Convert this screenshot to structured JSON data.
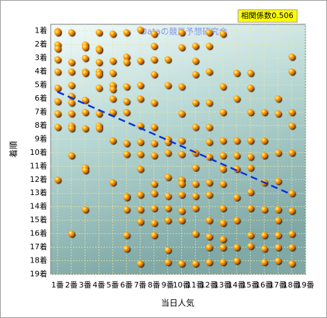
{
  "chart_data": {
    "type": "scatter",
    "title": "Dataの競馬予想研究会",
    "annotation": "相関係数0.506",
    "x_label": "当日人気",
    "y_label": "着順",
    "x": [
      1,
      1,
      1,
      1,
      1,
      1,
      1,
      1,
      1,
      1,
      1,
      2,
      2,
      2,
      2,
      2,
      2,
      2,
      2,
      2,
      2,
      2,
      3,
      3,
      3,
      3,
      3,
      3,
      3,
      3,
      3,
      3,
      3,
      4,
      4,
      4,
      4,
      4,
      4,
      4,
      4,
      4,
      4,
      5,
      5,
      5,
      5,
      5,
      5,
      5,
      5,
      5,
      6,
      6,
      6,
      6,
      6,
      6,
      6,
      6,
      6,
      6,
      6,
      6,
      6,
      7,
      7,
      7,
      7,
      7,
      7,
      7,
      7,
      7,
      7,
      7,
      7,
      8,
      8,
      8,
      8,
      8,
      8,
      8,
      8,
      8,
      8,
      8,
      8,
      8,
      9,
      9,
      9,
      9,
      9,
      9,
      9,
      9,
      9,
      9,
      9,
      10,
      10,
      10,
      10,
      10,
      10,
      10,
      10,
      10,
      10,
      10,
      10,
      11,
      11,
      11,
      11,
      11,
      11,
      11,
      11,
      11,
      11,
      11,
      11,
      12,
      12,
      12,
      12,
      12,
      12,
      12,
      12,
      12,
      12,
      12,
      12,
      12,
      13,
      13,
      13,
      13,
      13,
      13,
      13,
      13,
      13,
      13,
      13,
      13,
      14,
      14,
      14,
      14,
      14,
      14,
      14,
      14,
      14,
      15,
      15,
      15,
      15,
      15,
      15,
      15,
      15,
      15,
      15,
      16,
      16,
      16,
      16,
      16,
      16,
      16,
      16,
      17,
      17,
      17,
      17,
      17,
      17,
      17,
      17,
      17,
      18,
      18,
      18,
      18,
      18,
      18,
      18,
      18,
      18,
      18
    ],
    "values": [
      1,
      1.1,
      2,
      2.3,
      3.1,
      4,
      5.2,
      6.2,
      7.1,
      8.1,
      12,
      1.1,
      3.3,
      4,
      5,
      5.8,
      6.3,
      7.1,
      8,
      8.2,
      10.2,
      16,
      2,
      2.2,
      3,
      4,
      4.1,
      6.1,
      7,
      8.2,
      11.1,
      11.3,
      14.2,
      1.1,
      2.3,
      2.4,
      3.3,
      4,
      4.2,
      5.2,
      7.1,
      8,
      8.2,
      1.2,
      3.2,
      4.1,
      5,
      5.3,
      6,
      7,
      9.1,
      12.2,
      1.1,
      2.9,
      3.3,
      5.1,
      6.2,
      7,
      9.3,
      10.1,
      13.2,
      13.3,
      14.2,
      16.1,
      17.1,
      0.9,
      3.2,
      5,
      6,
      8,
      9.2,
      10.1,
      11.2,
      13.1,
      14.2,
      15.1,
      18.2,
      1.2,
      2.1,
      3.1,
      4.2,
      6.3,
      8.1,
      9.3,
      10.2,
      12.3,
      13,
      14.1,
      15.2,
      16.1,
      3.1,
      5,
      9,
      9.2,
      10,
      11.8,
      13.2,
      14.1,
      15,
      17.2,
      18.1,
      1.1,
      2.2,
      5.1,
      7.1,
      9.1,
      10.1,
      12,
      12.3,
      13.1,
      14.3,
      15,
      18.2,
      2.1,
      3.2,
      4.2,
      6.3,
      8.1,
      10,
      11.1,
      12.3,
      13.2,
      14.1,
      16,
      18.2,
      1.1,
      2.1,
      4,
      6.3,
      8.1,
      9.2,
      10.3,
      12.2,
      13.1,
      15,
      16.2,
      17,
      18.1,
      1.2,
      5.1,
      7,
      9.1,
      10.2,
      11.2,
      12.3,
      14.1,
      15.2,
      16.4,
      17,
      18.1,
      4.1,
      6,
      9.1,
      10.2,
      11.2,
      13.3,
      15,
      17,
      18,
      4.1,
      5.2,
      7,
      9.1,
      10.3,
      11.1,
      12.9,
      14.1,
      16.1,
      16.9,
      7,
      9.1,
      10.2,
      12.2,
      14.2,
      16.1,
      17.1,
      18.1,
      6,
      7.1,
      10,
      12.1,
      14.2,
      15,
      16.1,
      17,
      18,
      2.9,
      4,
      7,
      8,
      10,
      13,
      14.3,
      16,
      17,
      18.2
    ],
    "color": "#ff9900",
    "trend": {
      "x": [
        1,
        18
      ],
      "values": [
        5.5,
        13.1
      ],
      "color": "#0a2ee0"
    },
    "xlim": [
      0.5,
      19
    ],
    "ylim": [
      0.5,
      19
    ],
    "xticks": [
      {
        "value": 1,
        "label": "1番"
      },
      {
        "value": 2,
        "label": "2番"
      },
      {
        "value": 3,
        "label": "3番"
      },
      {
        "value": 4,
        "label": "4番"
      },
      {
        "value": 5,
        "label": "5番"
      },
      {
        "value": 6,
        "label": "6番"
      },
      {
        "value": 7,
        "label": "7番"
      },
      {
        "value": 8,
        "label": "8番"
      },
      {
        "value": 9,
        "label": "9番"
      },
      {
        "value": 10,
        "label": "10番"
      },
      {
        "value": 11,
        "label": "11番"
      },
      {
        "value": 12,
        "label": "12番"
      },
      {
        "value": 13,
        "label": "13番"
      },
      {
        "value": 14,
        "label": "14番"
      },
      {
        "value": 15,
        "label": "15番"
      },
      {
        "value": 16,
        "label": "16番"
      },
      {
        "value": 17,
        "label": "17番"
      },
      {
        "value": 18,
        "label": "18番"
      },
      {
        "value": 19,
        "label": "19番"
      }
    ],
    "yticks": [
      {
        "value": 1,
        "label": "1着"
      },
      {
        "value": 2,
        "label": "2着"
      },
      {
        "value": 3,
        "label": "3着"
      },
      {
        "value": 4,
        "label": "4着"
      },
      {
        "value": 5,
        "label": "5着"
      },
      {
        "value": 6,
        "label": "6着"
      },
      {
        "value": 7,
        "label": "7着"
      },
      {
        "value": 8,
        "label": "8着"
      },
      {
        "value": 9,
        "label": "9着"
      },
      {
        "value": 10,
        "label": "10着"
      },
      {
        "value": 11,
        "label": "11着"
      },
      {
        "value": 12,
        "label": "12着"
      },
      {
        "value": 13,
        "label": "13着"
      },
      {
        "value": 14,
        "label": "14着"
      },
      {
        "value": 15,
        "label": "15着"
      },
      {
        "value": 16,
        "label": "16着"
      },
      {
        "value": 17,
        "label": "17着"
      },
      {
        "value": 18,
        "label": "18着"
      },
      {
        "value": 19,
        "label": "19着"
      }
    ],
    "y_reversed": true,
    "grid": true
  }
}
